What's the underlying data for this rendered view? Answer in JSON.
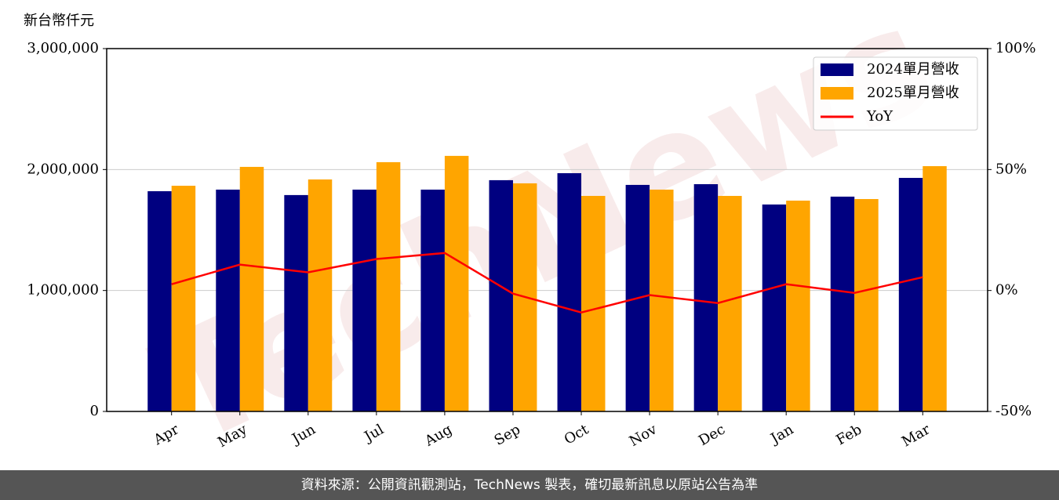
{
  "chart_data": {
    "type": "bar_line",
    "y_label": "新台幣仟元",
    "watermark": "TechNews",
    "footer": "資料來源：公開資訊觀測站，TechNews 製表，確切最新訊息以原站公告為準",
    "categories": [
      "Apr",
      "May",
      "Jun",
      "Jul",
      "Aug",
      "Sep",
      "Oct",
      "Nov",
      "Dec",
      "Jan",
      "Feb",
      "Mar"
    ],
    "series": [
      {
        "name": "2024單月營收",
        "color": "#000080",
        "type": "bar",
        "values": [
          1821000,
          1834000,
          1789000,
          1834000,
          1834000,
          1912000,
          1970000,
          1873000,
          1879000,
          1711000,
          1776000,
          1931000
        ]
      },
      {
        "name": "2025單月營收",
        "color": "#ffa500",
        "type": "bar",
        "values": [
          1866000,
          2022000,
          1918000,
          2061000,
          2113000,
          1886000,
          1782000,
          1834000,
          1782000,
          1743000,
          1756000,
          2028000
        ]
      },
      {
        "name": "YoY",
        "color": "#ff0000",
        "type": "line",
        "axis": "y2",
        "values": [
          2.6,
          10.7,
          7.5,
          13.0,
          15.5,
          -1.3,
          -9.1,
          -1.9,
          -5.2,
          2.6,
          -1.0,
          5.5
        ]
      }
    ],
    "ylim": [
      0,
      3000000
    ],
    "yticks": [
      0,
      {
        "value": 1000000,
        "label": "1,000,000"
      },
      {
        "value": 2000000,
        "label": "2,000,000"
      },
      {
        "value": 3000000,
        "label": "3,000,000"
      }
    ],
    "y2lim": [
      -50,
      100
    ],
    "y2ticks": [
      {
        "value": -50,
        "label": "-50%"
      },
      {
        "value": 0,
        "label": "0%"
      },
      {
        "value": 50,
        "label": "50%"
      },
      {
        "value": 100,
        "label": "100%"
      }
    ],
    "grid": true,
    "legend": "upper-right"
  }
}
